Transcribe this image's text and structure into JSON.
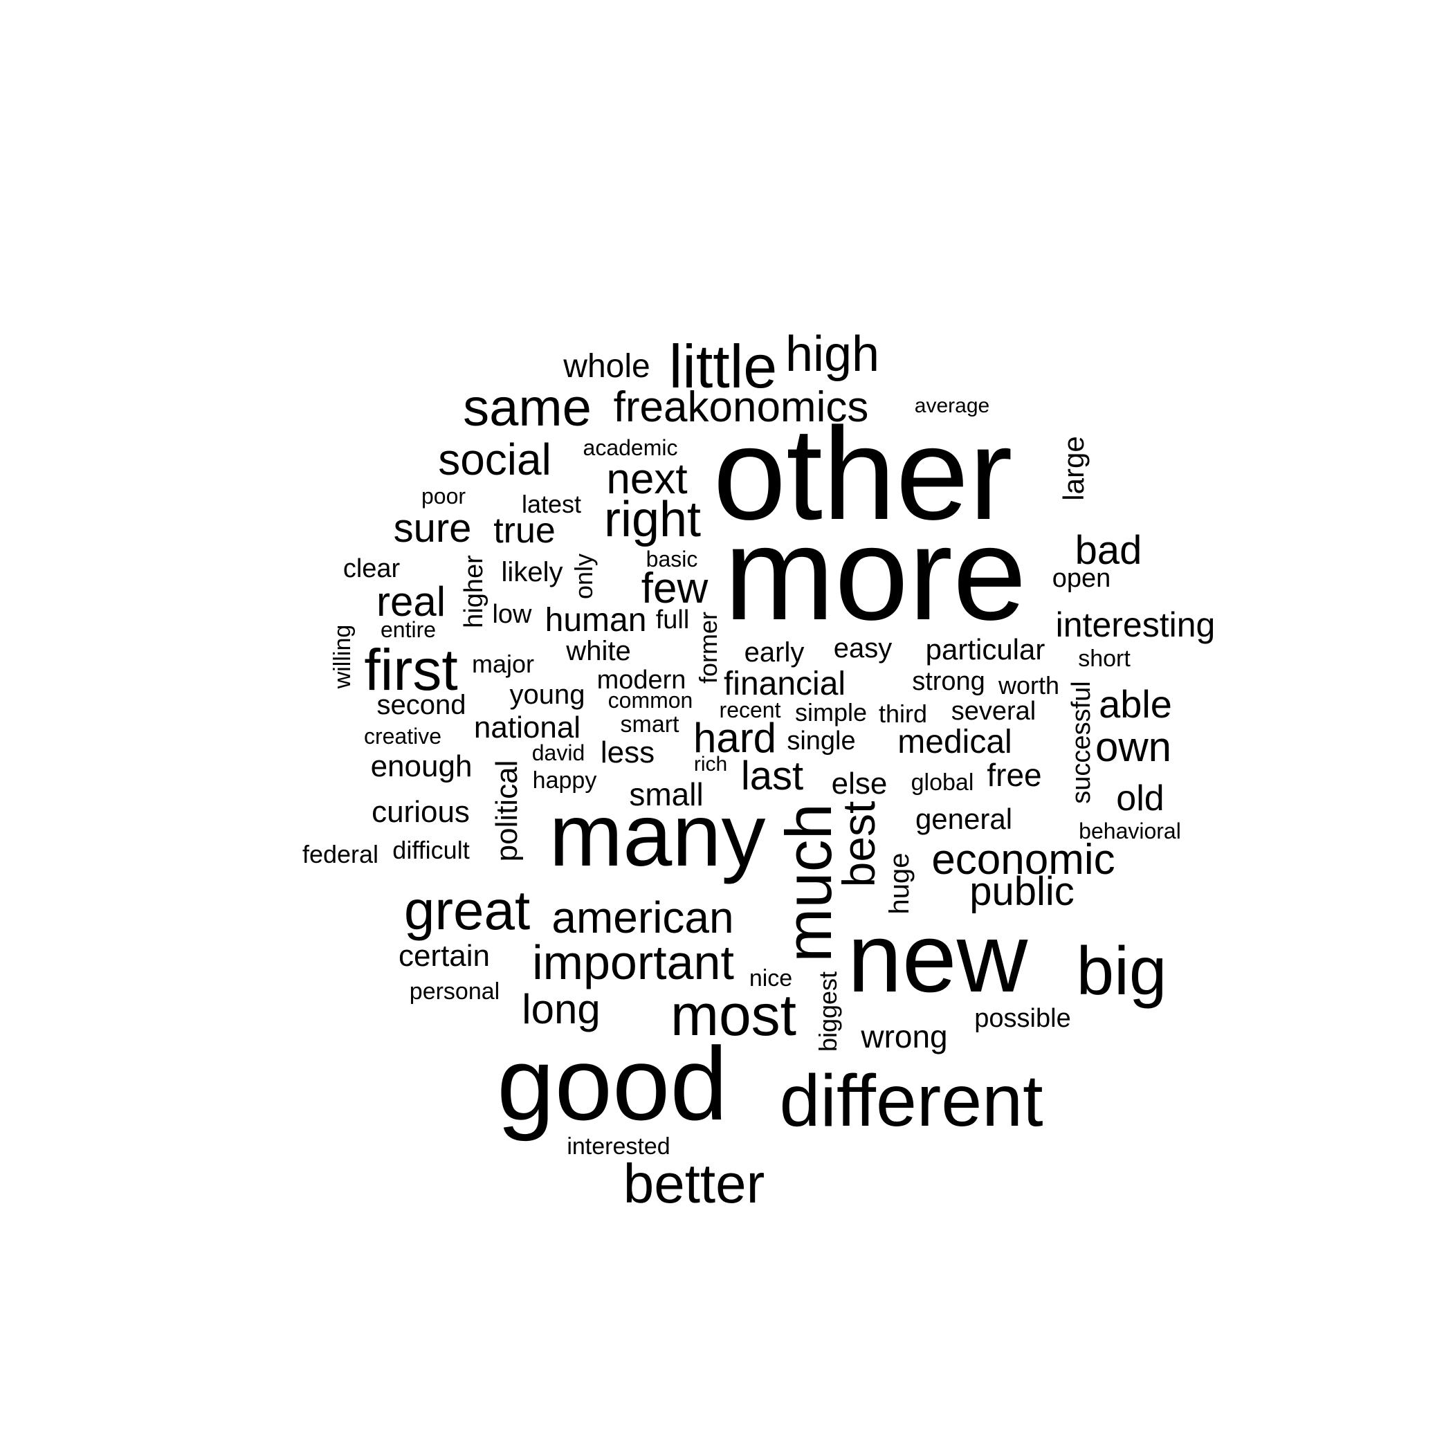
{
  "figure": {
    "type": "word-cloud",
    "background": "#ffffff",
    "text_color": "#000000"
  },
  "words": [
    {
      "text": "other",
      "vertical": false
    },
    {
      "text": "more",
      "vertical": false
    },
    {
      "text": "many",
      "vertical": false
    },
    {
      "text": "new",
      "vertical": false
    },
    {
      "text": "good",
      "vertical": false
    },
    {
      "text": "different",
      "vertical": false
    },
    {
      "text": "much",
      "vertical": true
    },
    {
      "text": "most",
      "vertical": false
    },
    {
      "text": "big",
      "vertical": false
    },
    {
      "text": "better",
      "vertical": false
    },
    {
      "text": "great",
      "vertical": false
    },
    {
      "text": "little",
      "vertical": false
    },
    {
      "text": "same",
      "vertical": false
    },
    {
      "text": "first",
      "vertical": false
    },
    {
      "text": "right",
      "vertical": false
    },
    {
      "text": "important",
      "vertical": false
    },
    {
      "text": "high",
      "vertical": false
    },
    {
      "text": "freakonomics",
      "vertical": false
    },
    {
      "text": "american",
      "vertical": false
    },
    {
      "text": "economic",
      "vertical": false
    },
    {
      "text": "social",
      "vertical": false
    },
    {
      "text": "best",
      "vertical": true
    },
    {
      "text": "next",
      "vertical": false
    },
    {
      "text": "long",
      "vertical": false
    },
    {
      "text": "hard",
      "vertical": false
    },
    {
      "text": "public",
      "vertical": false
    },
    {
      "text": "few",
      "vertical": false
    },
    {
      "text": "real",
      "vertical": false
    },
    {
      "text": "own",
      "vertical": false
    },
    {
      "text": "last",
      "vertical": false
    },
    {
      "text": "sure",
      "vertical": false
    },
    {
      "text": "bad",
      "vertical": false
    },
    {
      "text": "able",
      "vertical": false
    },
    {
      "text": "interesting",
      "vertical": false
    },
    {
      "text": "old",
      "vertical": false
    },
    {
      "text": "true",
      "vertical": false
    },
    {
      "text": "whole",
      "vertical": false
    },
    {
      "text": "human",
      "vertical": false
    },
    {
      "text": "financial",
      "vertical": false
    },
    {
      "text": "political",
      "vertical": true
    },
    {
      "text": "medical",
      "vertical": false
    },
    {
      "text": "small",
      "vertical": false
    },
    {
      "text": "free",
      "vertical": false
    },
    {
      "text": "national",
      "vertical": false
    },
    {
      "text": "wrong",
      "vertical": false
    },
    {
      "text": "certain",
      "vertical": false
    },
    {
      "text": "enough",
      "vertical": false
    },
    {
      "text": "curious",
      "vertical": false
    },
    {
      "text": "less",
      "vertical": false
    },
    {
      "text": "else",
      "vertical": false
    },
    {
      "text": "general",
      "vertical": false
    },
    {
      "text": "particular",
      "vertical": false
    },
    {
      "text": "white",
      "vertical": false
    },
    {
      "text": "young",
      "vertical": false
    },
    {
      "text": "easy",
      "vertical": false
    },
    {
      "text": "early",
      "vertical": false
    },
    {
      "text": "likely",
      "vertical": false
    },
    {
      "text": "second",
      "vertical": false
    },
    {
      "text": "modern",
      "vertical": false
    },
    {
      "text": "full",
      "vertical": false
    },
    {
      "text": "strong",
      "vertical": false
    },
    {
      "text": "several",
      "vertical": false
    },
    {
      "text": "large",
      "vertical": true
    },
    {
      "text": "huge",
      "vertical": true
    },
    {
      "text": "successful",
      "vertical": true
    },
    {
      "text": "higher",
      "vertical": true
    },
    {
      "text": "former",
      "vertical": true
    },
    {
      "text": "biggest",
      "vertical": true
    },
    {
      "text": "only",
      "vertical": true
    },
    {
      "text": "willing",
      "vertical": true
    },
    {
      "text": "open",
      "vertical": false
    },
    {
      "text": "single",
      "vertical": false
    },
    {
      "text": "possible",
      "vertical": false
    },
    {
      "text": "latest",
      "vertical": false
    },
    {
      "text": "clear",
      "vertical": false
    },
    {
      "text": "major",
      "vertical": false
    },
    {
      "text": "low",
      "vertical": false
    },
    {
      "text": "smart",
      "vertical": false
    },
    {
      "text": "third",
      "vertical": false
    },
    {
      "text": "simple",
      "vertical": false
    },
    {
      "text": "worth",
      "vertical": false
    },
    {
      "text": "short",
      "vertical": false
    },
    {
      "text": "happy",
      "vertical": false
    },
    {
      "text": "nice",
      "vertical": false
    },
    {
      "text": "difficult",
      "vertical": false
    },
    {
      "text": "federal",
      "vertical": false
    },
    {
      "text": "common",
      "vertical": false
    },
    {
      "text": "global",
      "vertical": false
    },
    {
      "text": "david",
      "vertical": false
    },
    {
      "text": "recent",
      "vertical": false
    },
    {
      "text": "interested",
      "vertical": false
    },
    {
      "text": "personal",
      "vertical": false
    },
    {
      "text": "behavioral",
      "vertical": false
    },
    {
      "text": "creative",
      "vertical": false
    },
    {
      "text": "basic",
      "vertical": false
    },
    {
      "text": "academic",
      "vertical": false
    },
    {
      "text": "entire",
      "vertical": false
    },
    {
      "text": "poor",
      "vertical": false
    },
    {
      "text": "rich",
      "vertical": false
    },
    {
      "text": "average",
      "vertical": false
    }
  ]
}
